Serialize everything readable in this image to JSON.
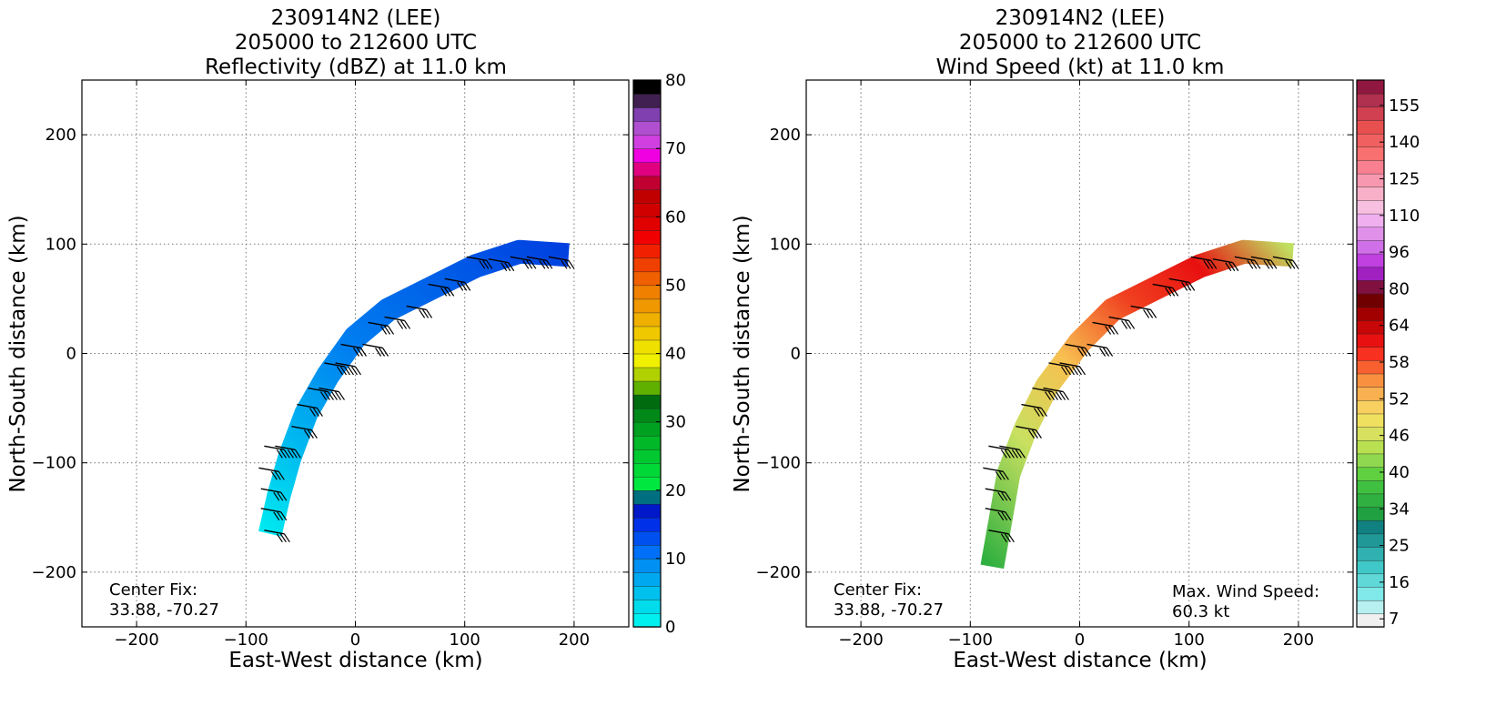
{
  "panels": [
    {
      "title_lines": [
        "230914N2 (LEE)",
        "205000 to 212600 UTC",
        "Reflectivity (dBZ) at 11.0 km"
      ],
      "xlabel": "East-West distance (km)",
      "ylabel": "North-South distance (km)",
      "annotation_left": [
        "Center Fix:",
        "33.88, -70.27"
      ],
      "annotation_right": [],
      "colorbar": {
        "ticks": [
          "0",
          "10",
          "20",
          "30",
          "40",
          "50",
          "60",
          "70",
          "80"
        ],
        "colors": [
          "#00f0f0",
          "#00dcec",
          "#00c0ee",
          "#00a8f0",
          "#0090f2",
          "#0070f8",
          "#0050f0",
          "#0030e8",
          "#0018c8",
          "#007080",
          "#00e840",
          "#00d838",
          "#00c830",
          "#00b828",
          "#00a020",
          "#008818",
          "#006c10",
          "#60b000",
          "#b0d000",
          "#f0f000",
          "#f0e000",
          "#f0c800",
          "#f0b000",
          "#f09800",
          "#f08000",
          "#f06000",
          "#f04000",
          "#f02000",
          "#f00000",
          "#e00000",
          "#d00000",
          "#c00000",
          "#c00030",
          "#e00080",
          "#f000e0",
          "#d040e0",
          "#b050d0",
          "#8040b0",
          "#402050",
          "#000000"
        ]
      }
    },
    {
      "title_lines": [
        "230914N2 (LEE)",
        "205000 to 212600 UTC",
        "Wind Speed (kt) at 11.0 km"
      ],
      "xlabel": "East-West distance (km)",
      "ylabel": "North-South distance (km)",
      "annotation_left": [
        "Center Fix:",
        "33.88, -70.27"
      ],
      "annotation_right": [
        "Max. Wind Speed:",
        "60.3 kt"
      ],
      "colorbar": {
        "ticks": [
          "7",
          "16",
          "25",
          "34",
          "40",
          "46",
          "52",
          "58",
          "64",
          "80",
          "96",
          "110",
          "125",
          "140",
          "155"
        ],
        "colors": [
          "#f0f0f0",
          "#b8f0f0",
          "#80e8e8",
          "#60d8d8",
          "#40c8c8",
          "#30b0b0",
          "#209898",
          "#108080",
          "#20a040",
          "#30b040",
          "#40c040",
          "#60d040",
          "#90d850",
          "#b8e050",
          "#d8e060",
          "#f0e060",
          "#f8d060",
          "#f8b050",
          "#f89040",
          "#f86030",
          "#f83020",
          "#e81010",
          "#c80808",
          "#a00000",
          "#700000",
          "#801040",
          "#a020c0",
          "#c040e0",
          "#d070e8",
          "#e090e8",
          "#f0b0f0",
          "#f8c0e0",
          "#f8b0c8",
          "#f898b0",
          "#f88090",
          "#f87070",
          "#f06060",
          "#e85050",
          "#d04050",
          "#b03050",
          "#901840"
        ]
      }
    }
  ],
  "chart_data": [
    {
      "type": "heatmap",
      "title": "230914N2 (LEE) 205000 to 212600 UTC Reflectivity (dBZ) at 11.0 km",
      "xlabel": "East-West distance (km)",
      "ylabel": "North-South distance (km)",
      "xlim": [
        -250,
        250
      ],
      "ylim": [
        -250,
        250
      ],
      "x_ticks": [
        -200,
        -100,
        0,
        100,
        200
      ],
      "y_ticks": [
        -200,
        -100,
        0,
        100,
        200
      ],
      "grid": true,
      "colorbar_range": [
        0,
        80
      ],
      "colorbar_label_ticks": [
        0,
        10,
        20,
        30,
        40,
        50,
        60,
        70,
        80
      ],
      "swath_centerline": [
        [
          -78,
          -165
        ],
        [
          -70,
          -130
        ],
        [
          -60,
          -95
        ],
        [
          -45,
          -55
        ],
        [
          -25,
          -20
        ],
        [
          0,
          15
        ],
        [
          30,
          40
        ],
        [
          70,
          60
        ],
        [
          110,
          80
        ],
        [
          150,
          93
        ],
        [
          195,
          90
        ]
      ],
      "swath_value_range": [
        2,
        14
      ],
      "center_fix": "33.88, -70.27",
      "wind_barbs": [
        [
          -65,
          -165
        ],
        [
          -68,
          -145
        ],
        [
          -68,
          -127
        ],
        [
          -70,
          -108
        ],
        [
          -55,
          -88
        ],
        [
          -65,
          -88
        ],
        [
          -40,
          -70
        ],
        [
          -35,
          -50
        ],
        [
          -25,
          -35
        ],
        [
          -15,
          -35
        ],
        [
          -10,
          -12
        ],
        [
          0,
          -12
        ],
        [
          5,
          5
        ],
        [
          25,
          5
        ],
        [
          30,
          25
        ],
        [
          45,
          30
        ],
        [
          65,
          40
        ],
        [
          85,
          60
        ],
        [
          100,
          65
        ],
        [
          120,
          85
        ],
        [
          140,
          83
        ],
        [
          160,
          85
        ],
        [
          175,
          85
        ],
        [
          195,
          85
        ]
      ]
    },
    {
      "type": "heatmap",
      "title": "230914N2 (LEE) 205000 to 212600 UTC Wind Speed (kt) at 11.0 km",
      "xlabel": "East-West distance (km)",
      "ylabel": "North-South distance (km)",
      "xlim": [
        -250,
        250
      ],
      "ylim": [
        -250,
        250
      ],
      "x_ticks": [
        -200,
        -100,
        0,
        100,
        200
      ],
      "y_ticks": [
        -200,
        -100,
        0,
        100,
        200
      ],
      "grid": true,
      "colorbar_label_ticks": [
        7,
        16,
        25,
        34,
        40,
        46,
        52,
        58,
        64,
        80,
        96,
        110,
        125,
        140,
        155
      ],
      "swath_centerline": [
        [
          -80,
          -195
        ],
        [
          -72,
          -150
        ],
        [
          -65,
          -110
        ],
        [
          -50,
          -70
        ],
        [
          -30,
          -30
        ],
        [
          0,
          10
        ],
        [
          30,
          40
        ],
        [
          70,
          60
        ],
        [
          110,
          80
        ],
        [
          150,
          93
        ],
        [
          195,
          90
        ]
      ],
      "swath_value_range": [
        30,
        60
      ],
      "max_wind_speed": "60.3 kt",
      "center_fix": "33.88, -70.27",
      "wind_barbs": [
        [
          -65,
          -165
        ],
        [
          -68,
          -145
        ],
        [
          -68,
          -127
        ],
        [
          -70,
          -108
        ],
        [
          -55,
          -88
        ],
        [
          -65,
          -88
        ],
        [
          -40,
          -70
        ],
        [
          -35,
          -50
        ],
        [
          -25,
          -35
        ],
        [
          -15,
          -35
        ],
        [
          -10,
          -12
        ],
        [
          0,
          -12
        ],
        [
          5,
          5
        ],
        [
          25,
          5
        ],
        [
          30,
          25
        ],
        [
          45,
          30
        ],
        [
          65,
          40
        ],
        [
          85,
          60
        ],
        [
          100,
          65
        ],
        [
          120,
          85
        ],
        [
          140,
          83
        ],
        [
          160,
          85
        ],
        [
          175,
          85
        ],
        [
          195,
          85
        ]
      ]
    }
  ]
}
